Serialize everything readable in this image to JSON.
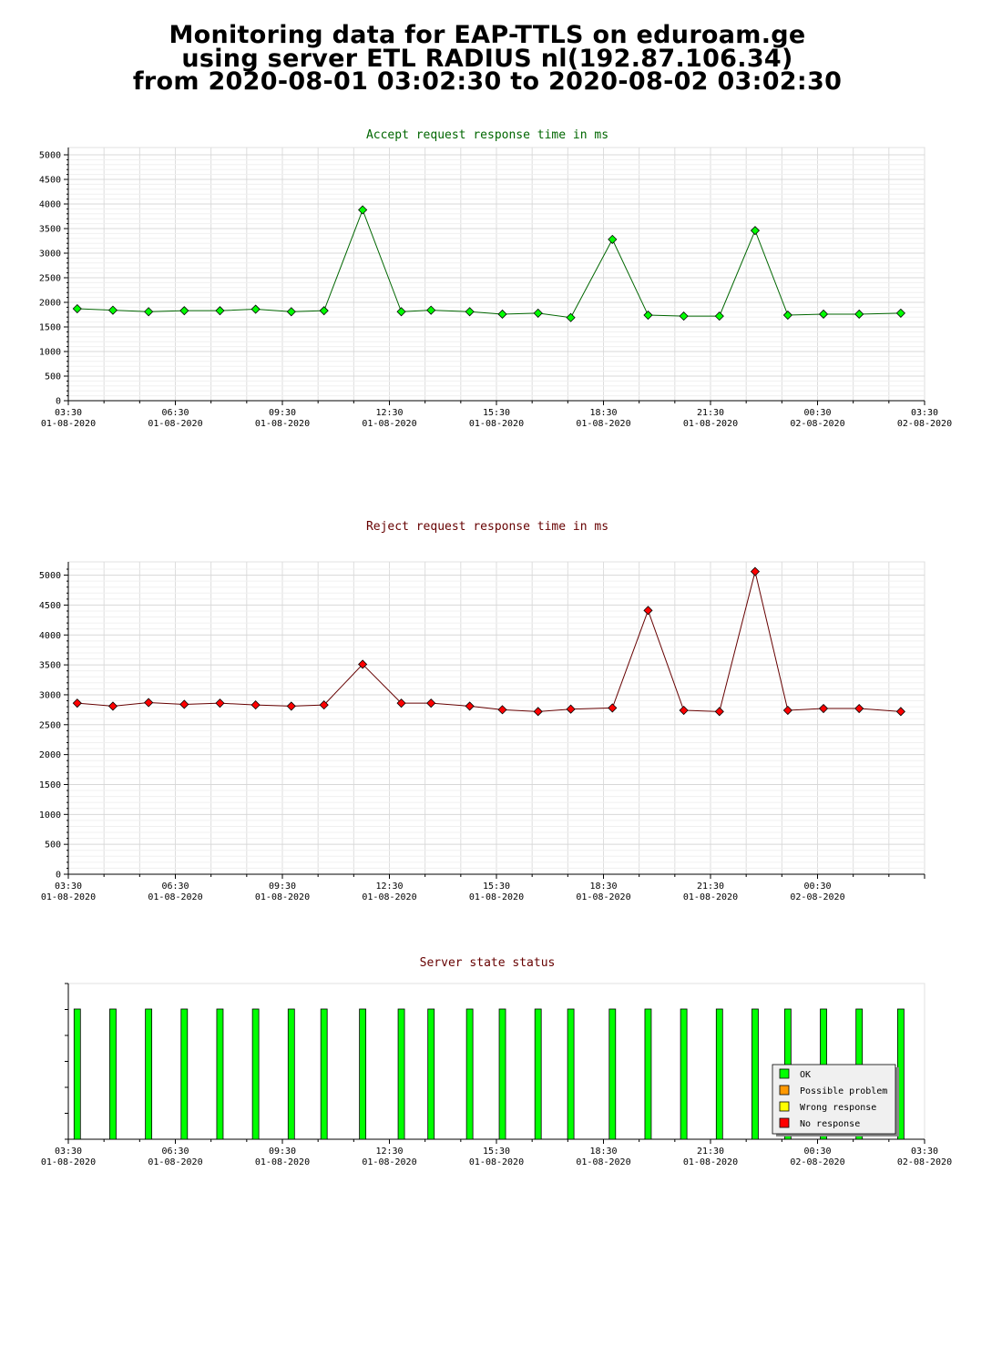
{
  "header": {
    "line1": "Monitoring data for EAP-TTLS on eduroam.ge",
    "line2": "using server ETL RADIUS nl(192.87.106.34)",
    "line3": "from 2020-08-01 03:02:30 to 2020-08-02 03:02:30"
  },
  "colors": {
    "accept": "#00ff00",
    "accept_line": "#006600",
    "reject": "#ff0000",
    "reject_line": "#660000",
    "ok": "#00ff00",
    "possible": "#ff9900",
    "wrong": "#ffff00",
    "noresp": "#ff0000"
  },
  "charts": {
    "accept": {
      "title": "Accept request response time in ms",
      "title_color": "#006600"
    },
    "reject": {
      "title": "Reject request response time in ms",
      "title_color": "#660000"
    },
    "status": {
      "title": "Server state status",
      "title_color": "#660000"
    }
  },
  "chart_data": [
    {
      "type": "line",
      "title": "Accept request response time in ms",
      "x": [
        "03:45",
        "04:45",
        "05:45",
        "06:45",
        "07:45",
        "08:45",
        "09:45",
        "10:40",
        "11:45",
        "12:50",
        "13:40",
        "14:45",
        "15:40",
        "16:40",
        "17:35",
        "18:45",
        "19:45",
        "20:45",
        "21:45",
        "22:45",
        "23:40",
        "00:40",
        "01:40",
        "02:50"
      ],
      "y": [
        1870,
        1840,
        1810,
        1830,
        1830,
        1860,
        1810,
        1830,
        3880,
        1810,
        1840,
        1810,
        1760,
        1780,
        1690,
        3280,
        1740,
        1720,
        1720,
        3460,
        1740,
        1760,
        1760,
        1780
      ],
      "ylim": [
        0,
        5000
      ],
      "yticks": [
        "0",
        "500",
        "1000",
        "1500",
        "2000",
        "2500",
        "3000",
        "3500",
        "4000",
        "4500",
        "5000"
      ],
      "xticks": [
        {
          "time": "03:30",
          "date": "01-08-2020"
        },
        {
          "time": "06:30",
          "date": "01-08-2020"
        },
        {
          "time": "09:30",
          "date": "01-08-2020"
        },
        {
          "time": "12:30",
          "date": "01-08-2020"
        },
        {
          "time": "15:30",
          "date": "01-08-2020"
        },
        {
          "time": "18:30",
          "date": "01-08-2020"
        },
        {
          "time": "21:30",
          "date": "01-08-2020"
        },
        {
          "time": "00:30",
          "date": "02-08-2020"
        },
        {
          "time": "03:30",
          "date": "02-08-2020"
        }
      ],
      "grid": true
    },
    {
      "type": "line",
      "title": "Reject request response time in ms",
      "x": [
        "03:45",
        "04:45",
        "05:45",
        "06:45",
        "07:45",
        "08:45",
        "09:45",
        "10:40",
        "11:45",
        "12:50",
        "13:40",
        "14:45",
        "15:40",
        "16:40",
        "17:35",
        "18:45",
        "19:45",
        "20:45",
        "21:45",
        "22:45",
        "23:40",
        "00:40",
        "01:40",
        "02:50"
      ],
      "y": [
        2860,
        2810,
        2870,
        2840,
        2860,
        2830,
        2810,
        2830,
        3510,
        2860,
        2860,
        2810,
        2750,
        2720,
        2760,
        2780,
        4410,
        2740,
        2720,
        5060,
        2740,
        2770,
        2770,
        2720
      ],
      "ylim": [
        0,
        5100
      ],
      "yticks": [
        "0",
        "500",
        "1000",
        "1500",
        "2000",
        "2500",
        "3000",
        "3500",
        "4000",
        "4500",
        "5000"
      ],
      "xticks": [
        {
          "time": "03:30",
          "date": "01-08-2020"
        },
        {
          "time": "06:30",
          "date": "01-08-2020"
        },
        {
          "time": "09:30",
          "date": "01-08-2020"
        },
        {
          "time": "12:30",
          "date": "01-08-2020"
        },
        {
          "time": "15:30",
          "date": "01-08-2020"
        },
        {
          "time": "18:30",
          "date": "01-08-2020"
        },
        {
          "time": "21:30",
          "date": "01-08-2020"
        },
        {
          "time": "00:30",
          "date": "02-08-2020"
        }
      ],
      "grid": true
    },
    {
      "type": "bar",
      "title": "Server state status",
      "x": [
        "03:45",
        "04:45",
        "05:45",
        "06:45",
        "07:45",
        "08:45",
        "09:45",
        "10:40",
        "11:45",
        "12:50",
        "13:40",
        "14:45",
        "15:40",
        "16:40",
        "17:35",
        "18:45",
        "19:45",
        "20:45",
        "21:45",
        "22:45",
        "23:40",
        "00:40",
        "01:40",
        "02:50"
      ],
      "states": [
        "OK",
        "OK",
        "OK",
        "OK",
        "OK",
        "OK",
        "OK",
        "OK",
        "OK",
        "OK",
        "OK",
        "OK",
        "OK",
        "OK",
        "OK",
        "OK",
        "OK",
        "OK",
        "OK",
        "OK",
        "OK",
        "OK",
        "OK",
        "OK"
      ],
      "legend": [
        "OK",
        "Possible problem",
        "Wrong response",
        "No response"
      ],
      "legend_position": "bottom-right",
      "xticks": [
        {
          "time": "03:30",
          "date": "01-08-2020"
        },
        {
          "time": "06:30",
          "date": "01-08-2020"
        },
        {
          "time": "09:30",
          "date": "01-08-2020"
        },
        {
          "time": "12:30",
          "date": "01-08-2020"
        },
        {
          "time": "15:30",
          "date": "01-08-2020"
        },
        {
          "time": "18:30",
          "date": "01-08-2020"
        },
        {
          "time": "21:30",
          "date": "01-08-2020"
        },
        {
          "time": "00:30",
          "date": "02-08-2020"
        },
        {
          "time": "03:30",
          "date": "02-08-2020"
        }
      ]
    }
  ]
}
